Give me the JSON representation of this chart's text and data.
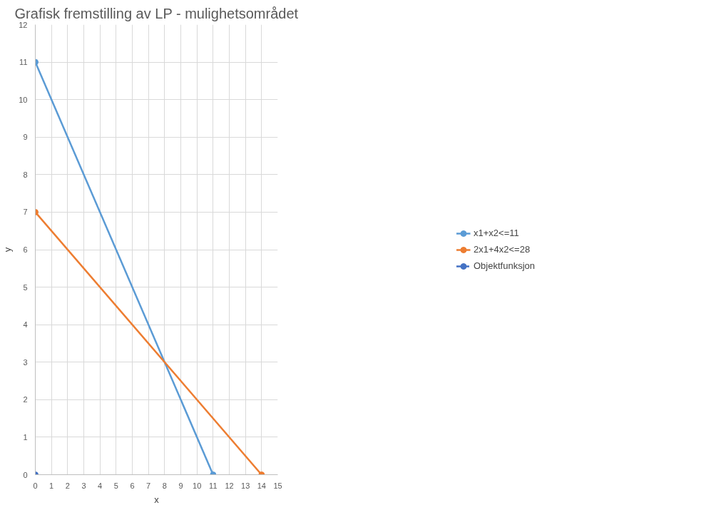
{
  "chart_data": {
    "type": "line",
    "title": "Grafisk fremstilling av LP - mulighetsområdet",
    "xlabel": "x",
    "ylabel": "y",
    "xlim": [
      0,
      15
    ],
    "ylim": [
      0,
      12
    ],
    "xticks": [
      0,
      1,
      2,
      3,
      4,
      5,
      6,
      7,
      8,
      9,
      10,
      11,
      12,
      13,
      14,
      15
    ],
    "yticks": [
      0,
      1,
      2,
      3,
      4,
      5,
      6,
      7,
      8,
      9,
      10,
      11,
      12
    ],
    "grid": true,
    "legend": "right",
    "marker": "circle",
    "series": [
      {
        "name": "x1+x2<=11",
        "color": "#5b9bd5",
        "x": [
          0,
          11
        ],
        "values": [
          11,
          0
        ]
      },
      {
        "name": "2x1+4x2<=28",
        "color": "#ed7d31",
        "x": [
          0,
          14
        ],
        "values": [
          7,
          0
        ]
      },
      {
        "name": "Objektfunksjon",
        "color": "#4472c4",
        "x": [
          0
        ],
        "values": [
          0
        ],
        "line_style": "dashed"
      }
    ]
  }
}
